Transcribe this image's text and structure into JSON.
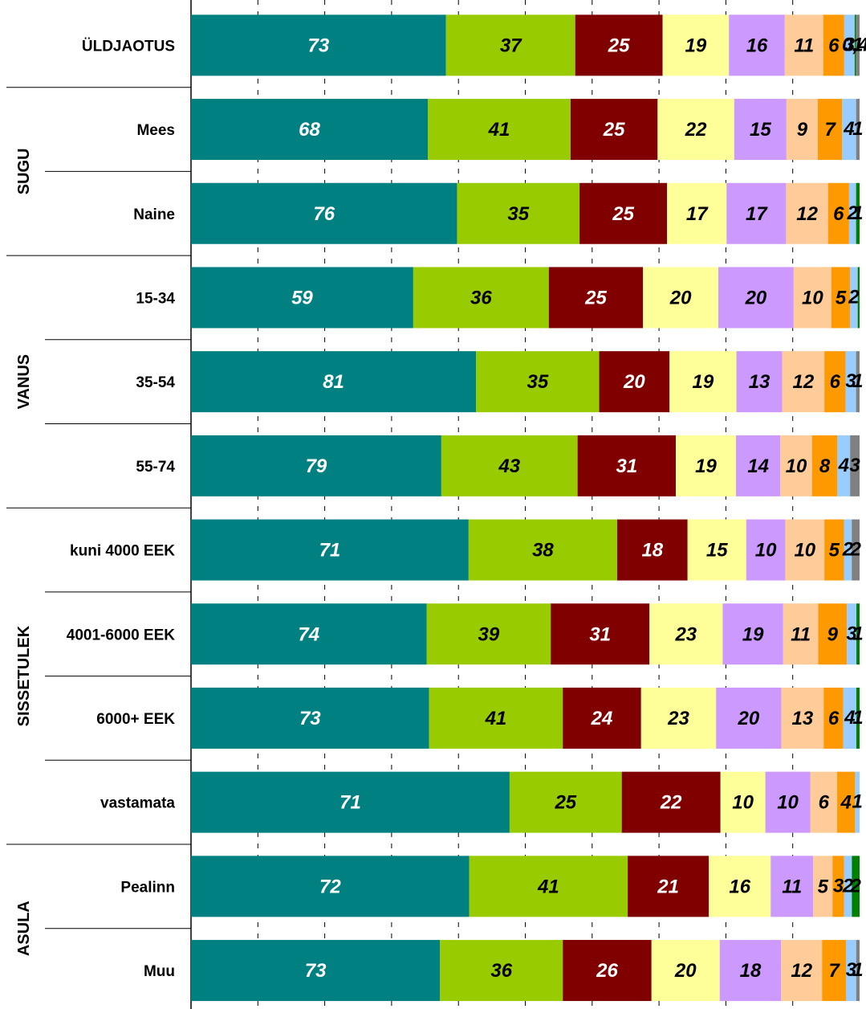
{
  "chart_data": {
    "type": "bar",
    "stacked": true,
    "orientation": "horizontal",
    "grid": true,
    "series_colors": [
      "#008080",
      "#99cc00",
      "#800000",
      "#ffff99",
      "#cc99ff",
      "#ffcc99",
      "#ff9900",
      "#99ccff",
      "#008000",
      "#808080"
    ],
    "groups": [
      {
        "label": "",
        "rows": [
          {
            "label": "ÜLDJAOTUS",
            "values": [
              73,
              37,
              25,
              19,
              16,
              11,
              6,
              3,
              0.4,
              1
            ],
            "labels": [
              "73",
              "37",
              "25",
              "19",
              "16",
              "11",
              "6",
              "3",
              "0,4",
              "1"
            ]
          }
        ]
      },
      {
        "label": "SUGU",
        "rows": [
          {
            "label": "Mees",
            "values": [
              68,
              41,
              25,
              22,
              15,
              9,
              7,
              4,
              0,
              1
            ],
            "labels": [
              "68",
              "41",
              "25",
              "22",
              "15",
              "9",
              "7",
              "4",
              "",
              "1"
            ]
          },
          {
            "label": "Naine",
            "values": [
              76,
              35,
              25,
              17,
              17,
              12,
              6,
              2,
              1,
              0
            ],
            "labels": [
              "76",
              "35",
              "25",
              "17",
              "17",
              "12",
              "6",
              "2",
              "1",
              ""
            ]
          }
        ]
      },
      {
        "label": "VANUS",
        "rows": [
          {
            "label": "15-34",
            "values": [
              59,
              36,
              25,
              20,
              20,
              10,
              5,
              2,
              0.5,
              0
            ],
            "labels": [
              "59",
              "36",
              "25",
              "20",
              "20",
              "10",
              "5",
              "2",
              "",
              ""
            ]
          },
          {
            "label": "35-54",
            "values": [
              81,
              35,
              20,
              19,
              13,
              12,
              6,
              3,
              0,
              1
            ],
            "labels": [
              "81",
              "35",
              "20",
              "19",
              "13",
              "12",
              "6",
              "3",
              "",
              "1"
            ]
          },
          {
            "label": "55-74",
            "values": [
              79,
              43,
              31,
              19,
              14,
              10,
              8,
              4,
              0,
              3
            ],
            "labels": [
              "79",
              "43",
              "31",
              "19",
              "14",
              "10",
              "8",
              "4",
              "",
              "3"
            ]
          }
        ]
      },
      {
        "label": "SISSETULEK",
        "rows": [
          {
            "label": "kuni 4000 EEK",
            "values": [
              71,
              38,
              18,
              15,
              10,
              10,
              5,
              2,
              0,
              2
            ],
            "labels": [
              "71",
              "38",
              "18",
              "15",
              "10",
              "10",
              "5",
              "2",
              "",
              "2"
            ]
          },
          {
            "label": "4001-6000 EEK",
            "values": [
              74,
              39,
              31,
              23,
              19,
              11,
              9,
              3,
              1,
              0
            ],
            "labels": [
              "74",
              "39",
              "31",
              "23",
              "19",
              "11",
              "9",
              "3",
              "1",
              ""
            ]
          },
          {
            "label": "6000+ EEK",
            "values": [
              73,
              41,
              24,
              23,
              20,
              13,
              6,
              4,
              1,
              0
            ],
            "labels": [
              "73",
              "41",
              "24",
              "23",
              "20",
              "13",
              "6",
              "4",
              "1",
              ""
            ]
          },
          {
            "label": "vastamata",
            "values": [
              71,
              25,
              22,
              10,
              10,
              6,
              4,
              1,
              0,
              0
            ],
            "labels": [
              "71",
              "25",
              "22",
              "10",
              "10",
              "6",
              "4",
              "1",
              "",
              ""
            ]
          }
        ]
      },
      {
        "label": "ASULA",
        "rows": [
          {
            "label": "Pealinn",
            "values": [
              72,
              41,
              21,
              16,
              11,
              5,
              3,
              2,
              2,
              0
            ],
            "labels": [
              "72",
              "41",
              "21",
              "16",
              "11",
              "5",
              "3",
              "2",
              "2",
              ""
            ]
          },
          {
            "label": "Muu",
            "values": [
              73,
              36,
              26,
              20,
              18,
              12,
              7,
              3,
              0,
              1
            ],
            "labels": [
              "73",
              "36",
              "26",
              "20",
              "18",
              "12",
              "7",
              "3",
              "",
              "1"
            ]
          }
        ]
      }
    ]
  }
}
